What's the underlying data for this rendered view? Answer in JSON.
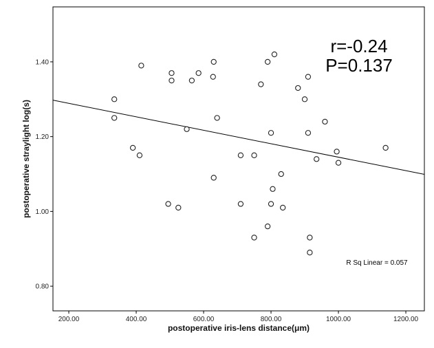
{
  "chart_data": {
    "type": "scatter",
    "xlabel": "postoperative iris-lens distance(μm)",
    "ylabel": "postoperative straylight log(s)",
    "xlim": [
      153,
      1255
    ],
    "ylim": [
      0.734,
      1.547
    ],
    "xticks": [
      200,
      400,
      600,
      800,
      1000,
      1200
    ],
    "xtick_labels": [
      "200.00",
      "400.00",
      "600.00",
      "800.00",
      "1000.00",
      "1200.00"
    ],
    "yticks": [
      0.8,
      1.0,
      1.2,
      1.4
    ],
    "ytick_labels": [
      "0.80",
      "1.00",
      "1.20",
      "1.40"
    ],
    "grid": false,
    "points": [
      [
        335,
        1.3
      ],
      [
        335,
        1.25
      ],
      [
        415,
        1.39
      ],
      [
        390,
        1.17
      ],
      [
        410,
        1.15
      ],
      [
        505,
        1.37
      ],
      [
        505,
        1.35
      ],
      [
        495,
        1.02
      ],
      [
        525,
        1.01
      ],
      [
        550,
        1.22
      ],
      [
        565,
        1.35
      ],
      [
        585,
        1.37
      ],
      [
        630,
        1.4
      ],
      [
        628,
        1.36
      ],
      [
        640,
        1.25
      ],
      [
        630,
        1.09
      ],
      [
        710,
        1.15
      ],
      [
        710,
        1.02
      ],
      [
        750,
        1.15
      ],
      [
        750,
        0.93
      ],
      [
        770,
        1.34
      ],
      [
        790,
        1.4
      ],
      [
        810,
        1.42
      ],
      [
        800,
        1.21
      ],
      [
        790,
        0.96
      ],
      [
        800,
        1.02
      ],
      [
        805,
        1.06
      ],
      [
        830,
        1.1
      ],
      [
        835,
        1.01
      ],
      [
        880,
        1.33
      ],
      [
        900,
        1.3
      ],
      [
        910,
        1.36
      ],
      [
        910,
        1.21
      ],
      [
        915,
        0.93
      ],
      [
        915,
        0.89
      ],
      [
        935,
        1.14
      ],
      [
        960,
        1.24
      ],
      [
        995,
        1.16
      ],
      [
        1000,
        1.13
      ],
      [
        1140,
        1.17
      ]
    ],
    "fit_line": {
      "intercept": 1.325,
      "slope": -0.00018
    },
    "annotations": {
      "r": "r=-0.24",
      "p": "P=0.137",
      "r_sq": "R Sq Linear = 0.057"
    }
  }
}
